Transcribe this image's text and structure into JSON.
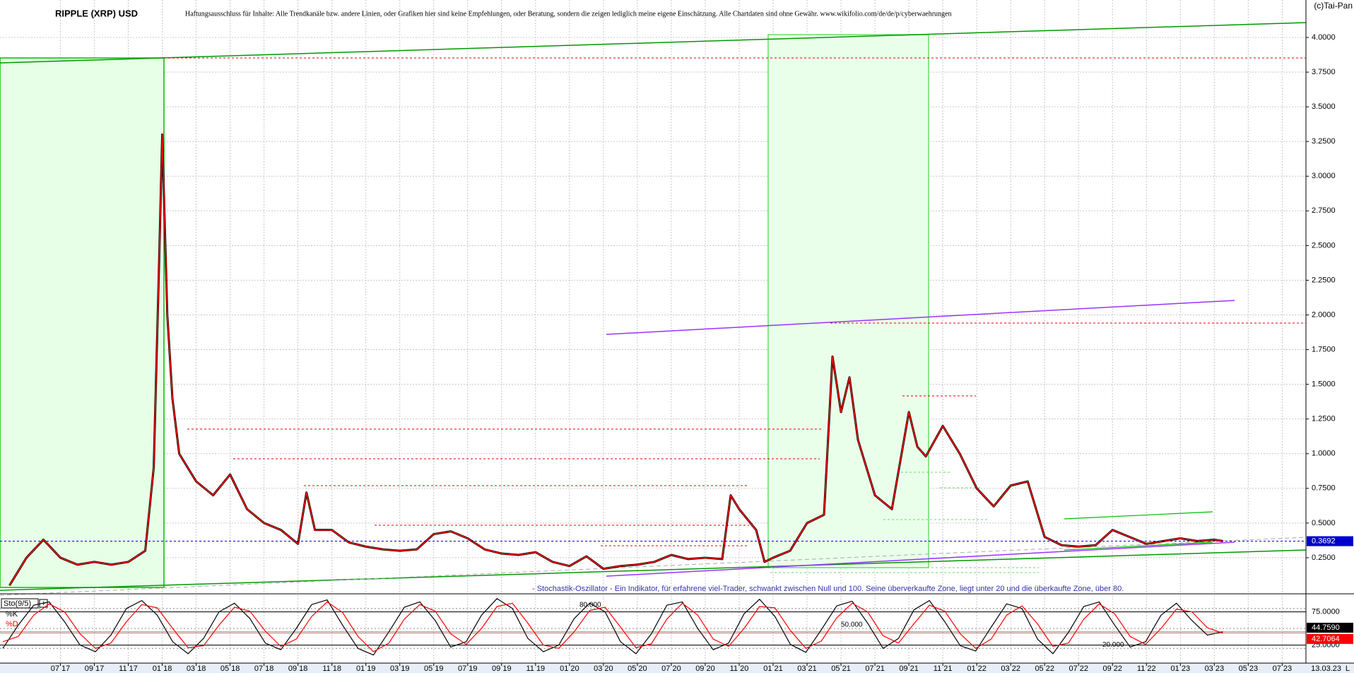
{
  "chart_data": {
    "type": "line",
    "title": "RIPPLE (XRP) USD",
    "subtitle": "Haftungsausschluss für Inhalte: Alle Trendkanäle bzw. andere Linien, oder Grafiken hier sind keine Empfehlungen, oder Beratung, sondern die zeigen lediglich meine eigene Einschätzung. Alle Chartdaten sind ohne Gewähr. www.wikifolio.com/de/de/p/cyberwaehrungen",
    "copyright": "(c)Tai-Pan",
    "date_stamp": "13.03.23",
    "corner_mark": "L",
    "xlim": [
      2.44,
      79.4
    ],
    "xticks": [
      {
        "value": 6,
        "label": "07 17"
      },
      {
        "value": 8,
        "label": "09 17"
      },
      {
        "value": 10,
        "label": "11 17"
      },
      {
        "value": 12,
        "label": "01 18"
      },
      {
        "value": 14,
        "label": "03 18"
      },
      {
        "value": 16,
        "label": "05 18"
      },
      {
        "value": 18,
        "label": "07 18"
      },
      {
        "value": 20,
        "label": "09 18"
      },
      {
        "value": 22,
        "label": "11 18"
      },
      {
        "value": 24,
        "label": "01 19"
      },
      {
        "value": 26,
        "label": "03 19"
      },
      {
        "value": 28,
        "label": "05 19"
      },
      {
        "value": 30,
        "label": "07 19"
      },
      {
        "value": 32,
        "label": "09 19"
      },
      {
        "value": 34,
        "label": "11 19"
      },
      {
        "value": 36,
        "label": "01 20"
      },
      {
        "value": 38,
        "label": "03 20"
      },
      {
        "value": 40,
        "label": "05 20"
      },
      {
        "value": 42,
        "label": "07 20"
      },
      {
        "value": 44,
        "label": "09 20"
      },
      {
        "value": 46,
        "label": "11 20"
      },
      {
        "value": 48,
        "label": "01 21"
      },
      {
        "value": 50,
        "label": "03 21"
      },
      {
        "value": 52,
        "label": "05 21"
      },
      {
        "value": 54,
        "label": "07 21"
      },
      {
        "value": 56,
        "label": "09 21"
      },
      {
        "value": 58,
        "label": "11 21"
      },
      {
        "value": 60,
        "label": "01 22"
      },
      {
        "value": 62,
        "label": "03 22"
      },
      {
        "value": 64,
        "label": "05 22"
      },
      {
        "value": 66,
        "label": "07 22"
      },
      {
        "value": 68,
        "label": "09 22"
      },
      {
        "value": 70,
        "label": "11 22"
      },
      {
        "value": 72,
        "label": "01 23"
      },
      {
        "value": 74,
        "label": "03 23"
      },
      {
        "value": 76,
        "label": "05 23"
      },
      {
        "value": 78,
        "label": "07 23"
      }
    ],
    "ylim": [
      0,
      4.27
    ],
    "yticks": [
      {
        "value": 0.25,
        "label": "0.2500"
      },
      {
        "value": 0.5,
        "label": "0.5000"
      },
      {
        "value": 0.75,
        "label": "0.7500"
      },
      {
        "value": 1,
        "label": "1.0000"
      },
      {
        "value": 1.25,
        "label": "1.2500"
      },
      {
        "value": 1.5,
        "label": "1.5000"
      },
      {
        "value": 1.75,
        "label": "1.7500"
      },
      {
        "value": 2,
        "label": "2.0000"
      },
      {
        "value": 2.25,
        "label": "2.2500"
      },
      {
        "value": 2.5,
        "label": "2.5000"
      },
      {
        "value": 2.75,
        "label": "2.7500"
      },
      {
        "value": 3,
        "label": "3.0000"
      },
      {
        "value": 3.25,
        "label": "3.2500"
      },
      {
        "value": 3.5,
        "label": "3.5000"
      },
      {
        "value": 3.75,
        "label": "3.7500"
      },
      {
        "value": 4,
        "label": "4.0000"
      }
    ],
    "grid": true,
    "last_price": {
      "value": 0.3692,
      "label": "0.3692"
    },
    "series": [
      {
        "name": "XRP",
        "color": "#ff0000",
        "x": [
          3,
          4,
          5,
          6,
          7,
          8,
          9,
          10,
          11,
          11.5,
          11.8,
          12,
          12.3,
          12.6,
          13,
          14,
          15,
          16,
          17,
          18,
          19,
          20,
          20.5,
          21,
          22,
          23,
          24,
          25,
          26,
          27,
          28,
          29,
          30,
          31,
          32,
          33,
          34,
          35,
          36,
          37,
          38,
          39,
          40,
          41,
          42,
          43,
          44,
          45,
          45.5,
          46,
          47,
          47.5,
          48,
          49,
          50,
          51,
          51.5,
          52,
          52.5,
          53,
          53.5,
          54,
          55,
          56,
          56.5,
          57,
          58,
          59,
          60,
          61,
          62,
          63,
          64,
          65,
          66,
          67,
          68,
          69,
          70,
          71,
          72,
          73,
          74,
          74.5
        ],
        "values": [
          0.05,
          0.25,
          0.38,
          0.25,
          0.2,
          0.22,
          0.2,
          0.22,
          0.3,
          0.9,
          2.3,
          3.3,
          2.0,
          1.4,
          1.0,
          0.8,
          0.7,
          0.85,
          0.6,
          0.5,
          0.45,
          0.35,
          0.72,
          0.45,
          0.45,
          0.36,
          0.33,
          0.31,
          0.3,
          0.31,
          0.42,
          0.44,
          0.39,
          0.31,
          0.28,
          0.27,
          0.29,
          0.22,
          0.19,
          0.26,
          0.17,
          0.19,
          0.2,
          0.22,
          0.27,
          0.24,
          0.25,
          0.24,
          0.7,
          0.6,
          0.45,
          0.22,
          0.25,
          0.3,
          0.5,
          0.56,
          1.7,
          1.3,
          1.55,
          1.1,
          0.9,
          0.7,
          0.6,
          1.3,
          1.05,
          0.98,
          1.2,
          1.0,
          0.75,
          0.62,
          0.77,
          0.8,
          0.4,
          0.34,
          0.33,
          0.34,
          0.45,
          0.4,
          0.35,
          0.37,
          0.39,
          0.37,
          0.38,
          0.37
        ]
      }
    ],
    "oscillator": {
      "title": "Sto(9/5)",
      "note": "- Stochastik-Oszillator - Ein Indikator, für erfahrene viel-Trader, schwankt zwischen Null und 100. Seine überverkaufte Zone, liegt unter 20 und die überkaufte Zone, über 80.",
      "ylim": [
        0,
        100
      ],
      "yticks": [
        {
          "value": 25,
          "label": "25.0000"
        },
        {
          "value": 75,
          "label": "75.0000"
        }
      ],
      "levels": [
        {
          "value": 80,
          "label": "80.000"
        },
        {
          "value": 50,
          "label": "50.000"
        },
        {
          "value": 20,
          "label": "20.000"
        }
      ],
      "series": [
        {
          "name": "%K",
          "color": "#000000",
          "last": {
            "value": 44.759,
            "label": "44.7590"
          },
          "values": [
            20,
            55,
            85,
            90,
            60,
            25,
            15,
            40,
            80,
            92,
            70,
            30,
            12,
            35,
            75,
            88,
            65,
            28,
            18,
            50,
            86,
            93,
            55,
            20,
            10,
            45,
            82,
            90,
            62,
            22,
            30,
            70,
            95,
            80,
            35,
            15,
            25,
            65,
            88,
            75,
            30,
            12,
            42,
            85,
            90,
            50,
            18,
            28,
            72,
            94,
            68,
            26,
            14,
            48,
            84,
            91,
            58,
            20,
            35,
            78,
            92,
            60,
            24,
            16,
            52,
            87,
            80,
            34,
            12,
            44,
            83,
            90,
            55,
            22,
            30,
            70,
            88,
            62,
            40,
            45
          ]
        },
        {
          "name": "%D",
          "color": "#ff0000",
          "last": {
            "value": 42.7064,
            "label": "42.7064"
          },
          "values": [
            30,
            38,
            70,
            87,
            75,
            42,
            20,
            28,
            60,
            86,
            81,
            50,
            21,
            24,
            55,
            82,
            76,
            46,
            23,
            34,
            68,
            90,
            74,
            38,
            15,
            28,
            64,
            86,
            76,
            42,
            26,
            50,
            83,
            88,
            58,
            25,
            20,
            45,
            77,
            82,
            52,
            21,
            27,
            64,
            88,
            70,
            34,
            23,
            50,
            83,
            81,
            47,
            20,
            31,
            66,
            88,
            75,
            39,
            28,
            57,
            85,
            76,
            42,
            20,
            34,
            70,
            84,
            57,
            23,
            28,
            64,
            87,
            72,
            38,
            26,
            50,
            79,
            75,
            51,
            43
          ]
        }
      ]
    }
  }
}
